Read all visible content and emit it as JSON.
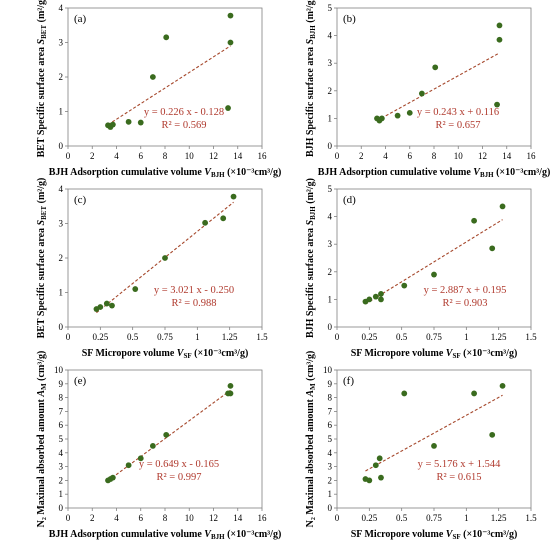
{
  "chart_data": [
    {
      "panel": "(a)",
      "type": "scatter",
      "xlabel": "BJH Adsorption cumulative volume V_BJH (×10⁻³cm³/g)",
      "ylabel": "BET Specific  surface area S_BET (m²/g)",
      "xlim": [
        0,
        16
      ],
      "ylim": [
        0,
        4
      ],
      "xticks": [
        0,
        2,
        4,
        6,
        8,
        10,
        12,
        14,
        16
      ],
      "yticks": [
        0,
        1,
        2,
        3,
        4
      ],
      "points": [
        {
          "x": 3.3,
          "y": 0.6
        },
        {
          "x": 3.5,
          "y": 0.55
        },
        {
          "x": 3.7,
          "y": 0.62
        },
        {
          "x": 5.0,
          "y": 0.7
        },
        {
          "x": 6.0,
          "y": 0.68
        },
        {
          "x": 7.0,
          "y": 2.0
        },
        {
          "x": 8.1,
          "y": 3.15
        },
        {
          "x": 13.2,
          "y": 1.1
        },
        {
          "x": 13.4,
          "y": 3.0
        },
        {
          "x": 13.4,
          "y": 3.78
        }
      ],
      "trend": {
        "slope": 0.226,
        "intercept": -0.128,
        "x_range": [
          3.3,
          13.4
        ]
      },
      "equation": "y = 0.226 x - 0.128",
      "r2": "R² = 0.569"
    },
    {
      "panel": "(b)",
      "type": "scatter",
      "xlabel": "BJH Adsorption cumulative volume V_BJH (×10⁻³cm³/g)",
      "ylabel": "BJH Specific  surface area S_BJH (m²/g)",
      "xlim": [
        0,
        16
      ],
      "ylim": [
        0,
        5
      ],
      "xticks": [
        0,
        2,
        4,
        6,
        8,
        10,
        12,
        14,
        16
      ],
      "yticks": [
        0,
        1,
        2,
        3,
        4,
        5
      ],
      "points": [
        {
          "x": 3.3,
          "y": 1.0
        },
        {
          "x": 3.5,
          "y": 0.92
        },
        {
          "x": 3.7,
          "y": 1.0
        },
        {
          "x": 5.0,
          "y": 1.1
        },
        {
          "x": 6.0,
          "y": 1.2
        },
        {
          "x": 7.0,
          "y": 1.9
        },
        {
          "x": 8.1,
          "y": 2.85
        },
        {
          "x": 13.2,
          "y": 1.5
        },
        {
          "x": 13.4,
          "y": 3.85
        },
        {
          "x": 13.4,
          "y": 4.37
        }
      ],
      "trend": {
        "slope": 0.243,
        "intercept": 0.116,
        "x_range": [
          3.3,
          13.4
        ]
      },
      "equation": "y = 0.243 x + 0.116",
      "r2": "R² = 0.657"
    },
    {
      "panel": "(c)",
      "type": "scatter",
      "xlabel": "SF Micropore volume V_SF (×10⁻³cm³/g)",
      "ylabel": "BET Specific  surface area S_BET (m²/g)",
      "xlim": [
        0,
        1.5
      ],
      "ylim": [
        0,
        4
      ],
      "xticks": [
        0,
        0.25,
        0.5,
        0.75,
        1,
        1.25,
        1.5
      ],
      "yticks": [
        0,
        1,
        2,
        3,
        4
      ],
      "points": [
        {
          "x": 0.22,
          "y": 0.52
        },
        {
          "x": 0.25,
          "y": 0.58
        },
        {
          "x": 0.3,
          "y": 0.68
        },
        {
          "x": 0.34,
          "y": 0.62
        },
        {
          "x": 0.52,
          "y": 1.1
        },
        {
          "x": 0.75,
          "y": 2.0
        },
        {
          "x": 1.06,
          "y": 3.02
        },
        {
          "x": 1.2,
          "y": 3.15
        },
        {
          "x": 1.28,
          "y": 3.78
        }
      ],
      "trend": {
        "slope": 3.021,
        "intercept": -0.25,
        "x_range": [
          0.22,
          1.28
        ]
      },
      "equation": "y = 3.021 x - 0.250",
      "r2": "R² = 0.988"
    },
    {
      "panel": "(d)",
      "type": "scatter",
      "xlabel": "SF Micropore volume V_SF (×10⁻³cm³/g)",
      "ylabel": "BJH Specific  surface area S_BJH (m²/g)",
      "xlim": [
        0,
        1.5
      ],
      "ylim": [
        0,
        5
      ],
      "xticks": [
        0,
        0.25,
        0.5,
        0.75,
        1,
        1.25,
        1.5
      ],
      "yticks": [
        0,
        1,
        2,
        3,
        4,
        5
      ],
      "points": [
        {
          "x": 0.22,
          "y": 0.92
        },
        {
          "x": 0.25,
          "y": 1.0
        },
        {
          "x": 0.3,
          "y": 1.1
        },
        {
          "x": 0.34,
          "y": 1.2
        },
        {
          "x": 0.34,
          "y": 1.0
        },
        {
          "x": 0.52,
          "y": 1.5
        },
        {
          "x": 0.75,
          "y": 1.9
        },
        {
          "x": 1.06,
          "y": 3.85
        },
        {
          "x": 1.2,
          "y": 2.85
        },
        {
          "x": 1.28,
          "y": 4.37
        }
      ],
      "trend": {
        "slope": 2.887,
        "intercept": 0.195,
        "x_range": [
          0.22,
          1.28
        ]
      },
      "equation": "y = 2.887 x + 0.195",
      "r2": "R² = 0.903"
    },
    {
      "panel": "(e)",
      "type": "scatter",
      "xlabel": "BJH Adsorption cumulative volume V_BJH (×10⁻³cm³/g)",
      "ylabel": "N₂ Maximal absorbed amount A_M (cm³/g)",
      "xlim": [
        0,
        16
      ],
      "ylim": [
        0,
        10
      ],
      "xticks": [
        0,
        2,
        4,
        6,
        8,
        10,
        12,
        14,
        16
      ],
      "yticks": [
        0,
        1,
        2,
        3,
        4,
        5,
        6,
        7,
        8,
        9,
        10
      ],
      "points": [
        {
          "x": 3.3,
          "y": 2.0
        },
        {
          "x": 3.5,
          "y": 2.1
        },
        {
          "x": 3.7,
          "y": 2.2
        },
        {
          "x": 5.0,
          "y": 3.1
        },
        {
          "x": 6.0,
          "y": 3.6
        },
        {
          "x": 7.0,
          "y": 4.5
        },
        {
          "x": 8.1,
          "y": 5.3
        },
        {
          "x": 13.2,
          "y": 8.3
        },
        {
          "x": 13.4,
          "y": 8.3
        },
        {
          "x": 13.4,
          "y": 8.85
        }
      ],
      "trend": {
        "slope": 0.649,
        "intercept": -0.165,
        "x_range": [
          3.3,
          13.4
        ]
      },
      "equation": "y = 0.649 x - 0.165",
      "r2": "R² = 0.997"
    },
    {
      "panel": "(f)",
      "type": "scatter",
      "xlabel": "SF Micropore volume V_SF (×10⁻³cm³/g)",
      "ylabel": "N₂ Maximal absorbed amount A_M (cm³/g)",
      "xlim": [
        0,
        1.5
      ],
      "ylim": [
        0,
        10
      ],
      "xticks": [
        0,
        0.25,
        0.5,
        0.75,
        1,
        1.25,
        1.5
      ],
      "yticks": [
        0,
        1,
        2,
        3,
        4,
        5,
        6,
        7,
        8,
        9,
        10
      ],
      "points": [
        {
          "x": 0.22,
          "y": 2.1
        },
        {
          "x": 0.25,
          "y": 2.0
        },
        {
          "x": 0.3,
          "y": 3.1
        },
        {
          "x": 0.33,
          "y": 3.6
        },
        {
          "x": 0.34,
          "y": 2.2
        },
        {
          "x": 0.52,
          "y": 8.3
        },
        {
          "x": 0.75,
          "y": 4.5
        },
        {
          "x": 1.06,
          "y": 8.3
        },
        {
          "x": 1.2,
          "y": 5.3
        },
        {
          "x": 1.28,
          "y": 8.85
        }
      ],
      "trend": {
        "slope": 5.176,
        "intercept": 1.544,
        "x_range": [
          0.22,
          1.28
        ]
      },
      "equation": "y = 5.176 x + 1.544",
      "r2": "R² = 0.615"
    }
  ]
}
